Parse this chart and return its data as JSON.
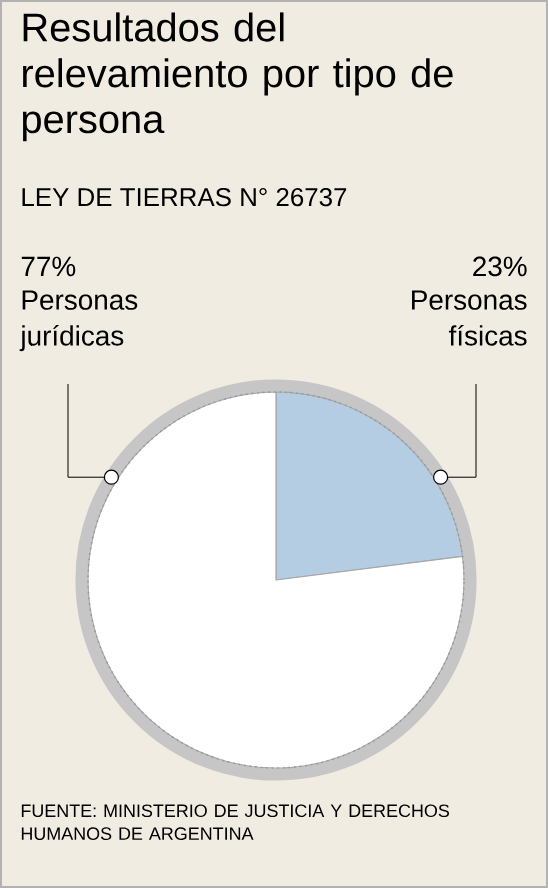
{
  "chart_data": {
    "type": "pie",
    "title": "Resultados del relevamiento por tipo de persona",
    "subtitle": "LEY DE TIERRAS N° 26737",
    "categories": [
      "Personas físicas",
      "Personas jurídicas"
    ],
    "values": [
      23,
      77
    ],
    "colors": [
      "#b4cde3",
      "#ffffff"
    ],
    "value_labels": [
      "23%",
      "77%"
    ],
    "annotations": [
      "FUENTE: MINISTERIO DE JUSTICIA Y DERECHOS HUMANOS DE ARGENTINA"
    ]
  }
}
